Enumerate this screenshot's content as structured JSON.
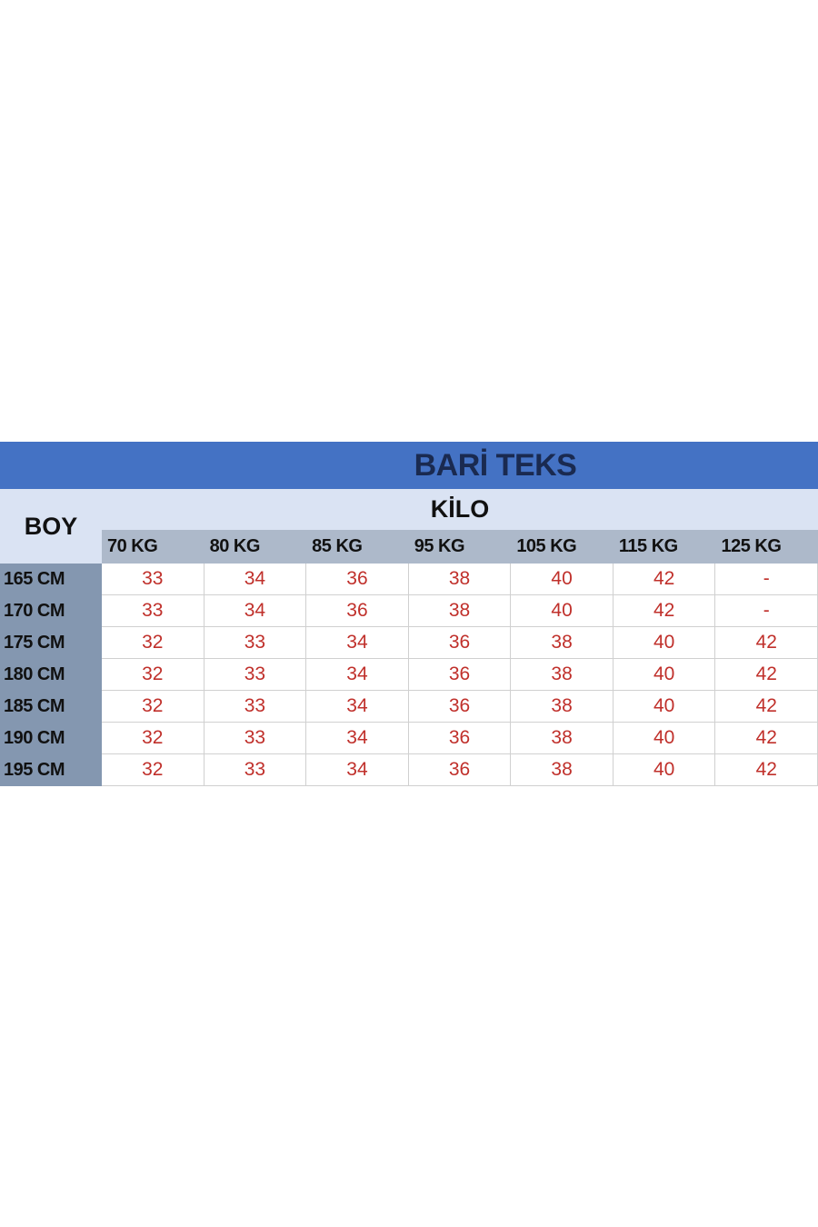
{
  "title": "BARİ TEKS",
  "row_header_label": "BOY",
  "column_group_label": "KİLO",
  "columns": [
    "70 KG",
    "80 KG",
    "85 KG",
    "95 KG",
    "105 KG",
    "115 KG",
    "125 KG"
  ],
  "rows": [
    {
      "label": "165 CM",
      "values": [
        "33",
        "34",
        "36",
        "38",
        "40",
        "42",
        "-"
      ]
    },
    {
      "label": "170 CM",
      "values": [
        "33",
        "34",
        "36",
        "38",
        "40",
        "42",
        "-"
      ]
    },
    {
      "label": "175 CM",
      "values": [
        "32",
        "33",
        "34",
        "36",
        "38",
        "40",
        "42"
      ]
    },
    {
      "label": "180 CM",
      "values": [
        "32",
        "33",
        "34",
        "36",
        "38",
        "40",
        "42"
      ]
    },
    {
      "label": "185 CM",
      "values": [
        "32",
        "33",
        "34",
        "36",
        "38",
        "40",
        "42"
      ]
    },
    {
      "label": "190 CM",
      "values": [
        "32",
        "33",
        "34",
        "36",
        "38",
        "40",
        "42"
      ]
    },
    {
      "label": "195 CM",
      "values": [
        "32",
        "33",
        "34",
        "36",
        "38",
        "40",
        "42"
      ]
    }
  ],
  "colors": {
    "title_bg": "#4472c4",
    "header_bg": "#dae3f3",
    "kg_bg": "#adb9ca",
    "row_header_bg": "#8497b0",
    "value_text": "#c0302b"
  }
}
